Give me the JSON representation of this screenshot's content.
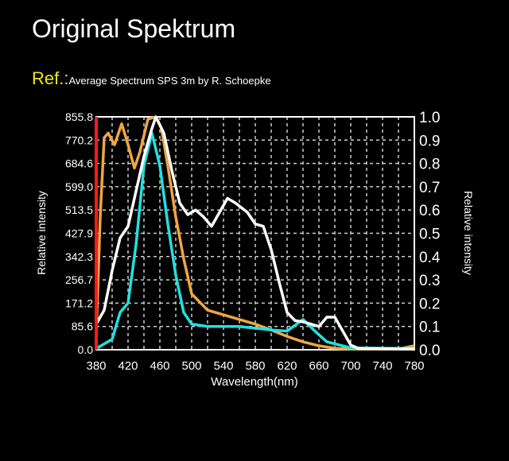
{
  "header": {
    "title": "Original Spektrum",
    "ref_label": "Ref.:",
    "ref_text": "Average Spectrum SPS 3m by R. Schoepke"
  },
  "chart_data": {
    "type": "line",
    "xlabel": "Wavelength(nm)",
    "ylabel_left": "Relative intensity",
    "ylabel_right": "Relative intensity",
    "xlim": [
      380,
      780
    ],
    "ylim": [
      0,
      1.0
    ],
    "x_ticks": [
      "380",
      "420",
      "460",
      "500",
      "540",
      "580",
      "620",
      "660",
      "700",
      "740",
      "780"
    ],
    "left_ticks": [
      "0.0",
      "85.6",
      "171.2",
      "256.7",
      "342.3",
      "427.9",
      "513.5",
      "599.0",
      "684.6",
      "770.2",
      "855.8"
    ],
    "right_ticks": [
      "0.0",
      "0.1",
      "0.2",
      "0.3",
      "0.4",
      "0.5",
      "0.6",
      "0.7",
      "0.8",
      "0.9",
      "1.0"
    ],
    "grid": true,
    "marker_line": {
      "x": 380,
      "color": "#ff1a1a"
    },
    "series": [
      {
        "color": "#f0a640",
        "points": [
          [
            380,
            0.06
          ],
          [
            385,
            0.57
          ],
          [
            390,
            0.91
          ],
          [
            395,
            0.93
          ],
          [
            403,
            0.88
          ],
          [
            412,
            0.97
          ],
          [
            420,
            0.88
          ],
          [
            428,
            0.78
          ],
          [
            435,
            0.85
          ],
          [
            445,
            0.99
          ],
          [
            455,
            1.0
          ],
          [
            462,
            0.95
          ],
          [
            470,
            0.79
          ],
          [
            480,
            0.57
          ],
          [
            490,
            0.39
          ],
          [
            500,
            0.24
          ],
          [
            520,
            0.17
          ],
          [
            540,
            0.15
          ],
          [
            560,
            0.13
          ],
          [
            580,
            0.11
          ],
          [
            600,
            0.085
          ],
          [
            620,
            0.057
          ],
          [
            640,
            0.034
          ],
          [
            660,
            0.017
          ],
          [
            680,
            0.006
          ],
          [
            700,
            0.003
          ],
          [
            760,
            0.003
          ],
          [
            780,
            0.017
          ]
        ]
      },
      {
        "color": "#22e0e0",
        "points": [
          [
            380,
            0.005
          ],
          [
            400,
            0.045
          ],
          [
            410,
            0.16
          ],
          [
            420,
            0.2
          ],
          [
            430,
            0.45
          ],
          [
            440,
            0.79
          ],
          [
            450,
            0.93
          ],
          [
            460,
            0.79
          ],
          [
            470,
            0.54
          ],
          [
            480,
            0.32
          ],
          [
            490,
            0.16
          ],
          [
            500,
            0.11
          ],
          [
            520,
            0.1
          ],
          [
            560,
            0.1
          ],
          [
            600,
            0.085
          ],
          [
            620,
            0.08
          ],
          [
            640,
            0.13
          ],
          [
            655,
            0.08
          ],
          [
            670,
            0.034
          ],
          [
            700,
            0.008
          ],
          [
            780,
            0.005
          ]
        ]
      },
      {
        "color": "#ffffff",
        "points": [
          [
            380,
            0.11
          ],
          [
            390,
            0.17
          ],
          [
            400,
            0.34
          ],
          [
            410,
            0.48
          ],
          [
            420,
            0.53
          ],
          [
            430,
            0.68
          ],
          [
            440,
            0.83
          ],
          [
            450,
            0.95
          ],
          [
            455,
            1.0
          ],
          [
            465,
            0.93
          ],
          [
            475,
            0.77
          ],
          [
            485,
            0.63
          ],
          [
            495,
            0.58
          ],
          [
            505,
            0.6
          ],
          [
            515,
            0.57
          ],
          [
            525,
            0.53
          ],
          [
            535,
            0.59
          ],
          [
            545,
            0.65
          ],
          [
            555,
            0.63
          ],
          [
            570,
            0.59
          ],
          [
            580,
            0.54
          ],
          [
            590,
            0.53
          ],
          [
            600,
            0.43
          ],
          [
            610,
            0.29
          ],
          [
            620,
            0.16
          ],
          [
            630,
            0.125
          ],
          [
            640,
            0.12
          ],
          [
            650,
            0.11
          ],
          [
            660,
            0.1
          ],
          [
            670,
            0.14
          ],
          [
            680,
            0.14
          ],
          [
            690,
            0.08
          ],
          [
            700,
            0.02
          ],
          [
            710,
            0.005
          ],
          [
            780,
            0.003
          ]
        ]
      }
    ]
  }
}
